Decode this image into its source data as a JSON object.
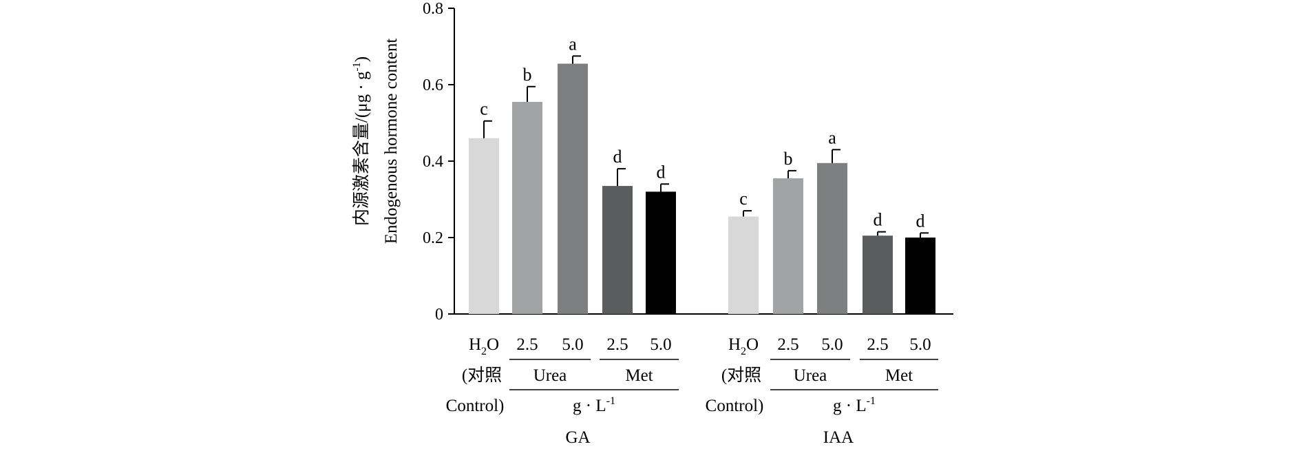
{
  "chart_data": {
    "type": "bar",
    "ylabel_zh": "内源激素含量/(μg · g",
    "ylabel_zh_sup": "-1",
    "ylabel_zh_close": ")",
    "ylabel_en": "Endogenous hormone content",
    "ylim": [
      0,
      0.8
    ],
    "yticks": [
      "0",
      "0.2",
      "0.4",
      "0.6",
      "0.8"
    ],
    "grid": false,
    "groups": [
      {
        "name": "GA",
        "categories": [
          "H2O",
          "2.5",
          "5.0",
          "2.5",
          "5.0"
        ],
        "values": [
          0.46,
          0.555,
          0.655,
          0.335,
          0.32
        ],
        "errors": [
          0.045,
          0.04,
          0.02,
          0.045,
          0.02
        ],
        "significance": [
          "c",
          "b",
          "a",
          "d",
          "d"
        ]
      },
      {
        "name": "IAA",
        "categories": [
          "H2O",
          "2.5",
          "5.0",
          "2.5",
          "5.0"
        ],
        "values": [
          0.255,
          0.355,
          0.395,
          0.205,
          0.2
        ],
        "errors": [
          0.015,
          0.02,
          0.035,
          0.01,
          0.012
        ],
        "significance": [
          "c",
          "b",
          "a",
          "d",
          "d"
        ]
      }
    ],
    "bar_colors": [
      "#d8d8d8",
      "#a2a3a5",
      "#7e7f80",
      "#5b5c5e",
      "#000000"
    ],
    "control_label_line2": "(对照",
    "control_label_line3": "Control)",
    "treatment_groups": [
      "Urea",
      "Met"
    ],
    "unit_label": "g · L",
    "unit_sup": "-1"
  }
}
